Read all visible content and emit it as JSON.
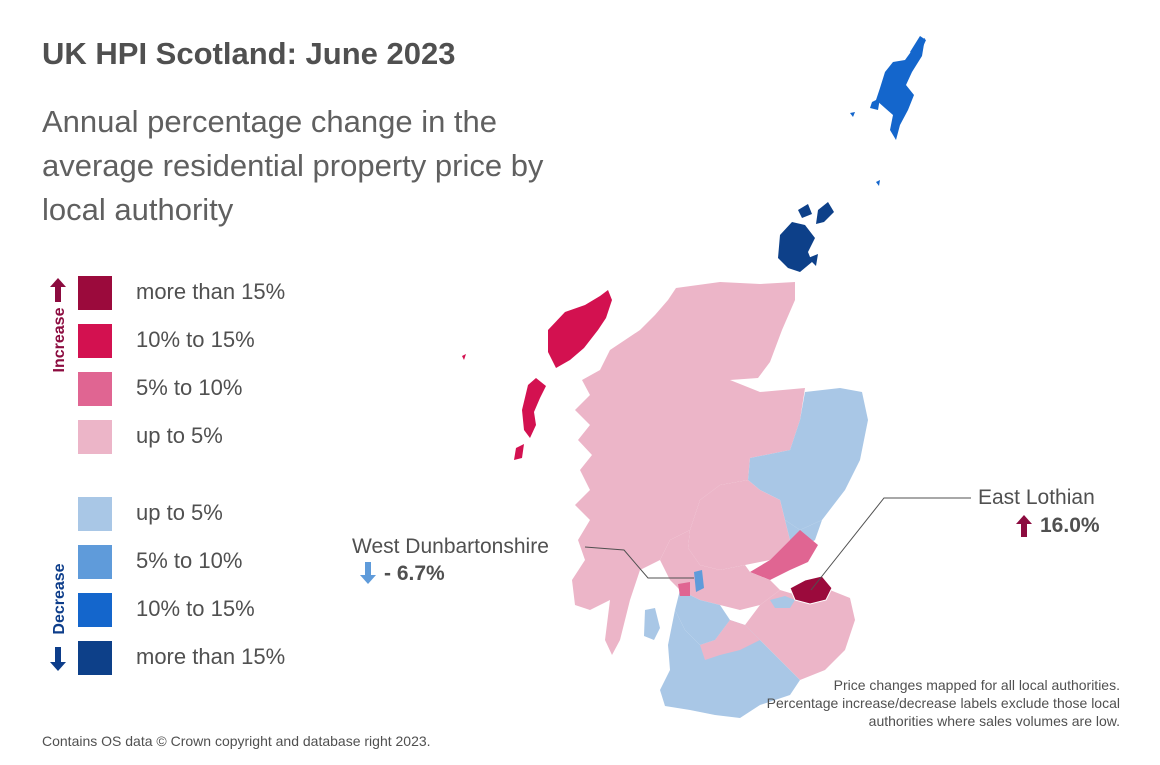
{
  "title": "UK HPI Scotland: June 2023",
  "subtitle": "Annual percentage change in the average residential property price by local authority",
  "legend": {
    "increase_label": "Increase",
    "decrease_label": "Decrease",
    "increase": [
      {
        "label": "more than 15%",
        "color": "#9b0a3c"
      },
      {
        "label": "10% to 15%",
        "color": "#d31150"
      },
      {
        "label": "5% to 10%",
        "color": "#e06592"
      },
      {
        "label": "up to 5%",
        "color": "#ecb5c8"
      }
    ],
    "decrease": [
      {
        "label": "up to 5%",
        "color": "#a9c7e6"
      },
      {
        "label": "5% to 10%",
        "color": "#5f9bda"
      },
      {
        "label": "10% to 15%",
        "color": "#1466cc"
      },
      {
        "label": "more than 15%",
        "color": "#0d4089"
      }
    ]
  },
  "callouts": [
    {
      "name": "East Lothian",
      "value": "16.0%",
      "direction": "increase",
      "arrow_color": "#8c0b3f"
    },
    {
      "name": "West Dunbartonshire",
      "value": "- 6.7%",
      "direction": "decrease",
      "arrow_color": "#5f9bda"
    }
  ],
  "footer": {
    "source": "Contains OS data © Crown copyright and database right 2023.",
    "note": "Price changes mapped for all local authorities. Percentage increase/decrease labels exclude those local authorities where sales volumes are low."
  }
}
